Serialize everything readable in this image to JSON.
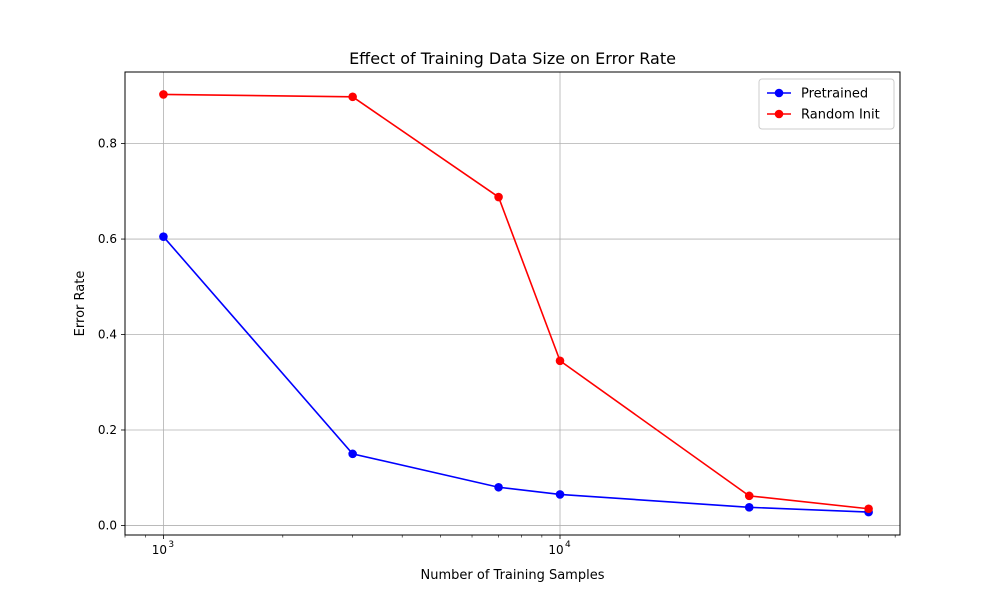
{
  "chart_data": {
    "type": "line",
    "title": "Effect of Training Data Size on Error Rate",
    "xlabel": "Number of Training Samples",
    "ylabel": "Error Rate",
    "x_scale": "log",
    "x": [
      1000,
      3000,
      7000,
      10000,
      30000,
      60000
    ],
    "xlim": [
      800,
      72000
    ],
    "ylim": [
      -0.02,
      0.95
    ],
    "x_ticks": [
      {
        "value": 1000,
        "base": "10",
        "exp": "3"
      },
      {
        "value": 10000,
        "base": "10",
        "exp": "4"
      }
    ],
    "y_ticks": [
      {
        "value": 0.0,
        "label": "0.0"
      },
      {
        "value": 0.2,
        "label": "0.2"
      },
      {
        "value": 0.4,
        "label": "0.4"
      },
      {
        "value": 0.6,
        "label": "0.6"
      },
      {
        "value": 0.8,
        "label": "0.8"
      }
    ],
    "grid": true,
    "legend_position": "top-right",
    "series": [
      {
        "name": "Pretrained",
        "color": "#0000ff",
        "marker": "circle",
        "values": [
          0.605,
          0.15,
          0.08,
          0.065,
          0.038,
          0.028
        ]
      },
      {
        "name": "Random Init",
        "color": "#ff0000",
        "marker": "circle",
        "values": [
          0.903,
          0.898,
          0.688,
          0.345,
          0.062,
          0.035
        ]
      }
    ]
  }
}
